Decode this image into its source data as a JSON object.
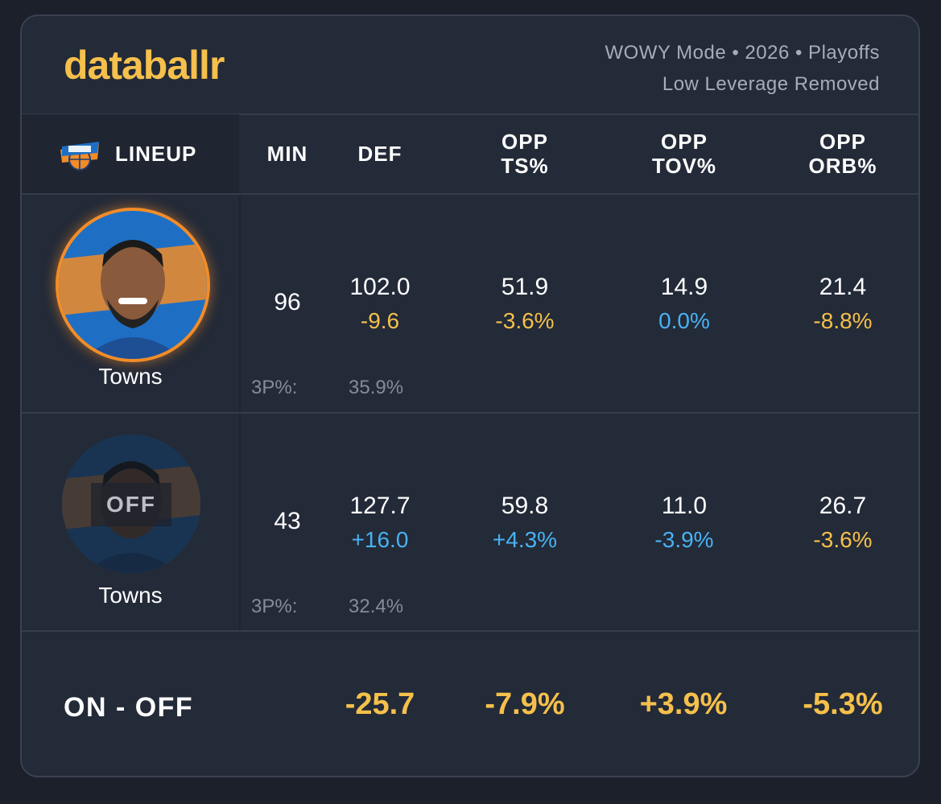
{
  "brand": {
    "logo_text": "databallr"
  },
  "header": {
    "line1": "WOWY Mode • 2026 • Playoffs",
    "line2": "Low Leverage Removed"
  },
  "columns": {
    "lineup": "LINEUP",
    "min": "MIN",
    "def": "DEF",
    "opp_ts_1": "OPP",
    "opp_ts_2": "TS%",
    "opp_tov_1": "OPP",
    "opp_tov_2": "TOV%",
    "opp_orb_1": "OPP",
    "opp_orb_2": "ORB%"
  },
  "team_icon": "knicks-logo-icon",
  "rows": [
    {
      "player": "Towns",
      "min": "96",
      "def": "102.0",
      "def_delta": "-9.6",
      "ts": "51.9",
      "ts_delta": "-3.6%",
      "tov": "14.9",
      "tov_delta": "0.0%",
      "orb": "21.4",
      "orb_delta": "-8.8%",
      "threep_label": "3P%:",
      "threep_value": "35.9%"
    },
    {
      "player": "Towns",
      "status": "OFF",
      "min": "43",
      "def": "127.7",
      "def_delta": "+16.0",
      "ts": "59.8",
      "ts_delta": "+4.3%",
      "tov": "11.0",
      "tov_delta": "-3.9%",
      "orb": "26.7",
      "orb_delta": "-3.6%",
      "threep_label": "3P%:",
      "threep_value": "32.4%"
    }
  ],
  "on_off": {
    "label": "ON - OFF",
    "def": "-25.7",
    "ts": "-7.9%",
    "tov": "+3.9%",
    "orb": "-5.3%"
  },
  "colors": {
    "accent_gold": "#f5c04b",
    "positive_blue": "#49b2f2",
    "knicks_orange": "#f28c28",
    "knicks_blue": "#1e6fc4"
  }
}
